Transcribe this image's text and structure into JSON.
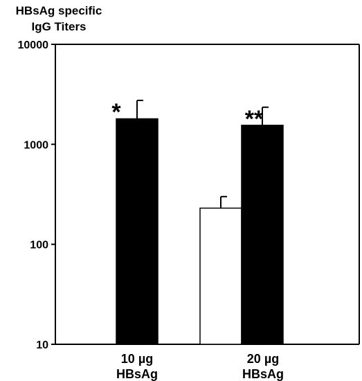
{
  "chart_data": {
    "type": "bar",
    "ylabel_lines": [
      "HBsAg specific",
      "IgG Titers"
    ],
    "yscale": "log",
    "ylim": [
      10,
      10000
    ],
    "yticks": [
      {
        "value": 10,
        "label": "10"
      },
      {
        "value": 100,
        "label": "100"
      },
      {
        "value": 1000,
        "label": "1000"
      },
      {
        "value": 10000,
        "label": "10000"
      }
    ],
    "categories": [
      {
        "lines": [
          "10 µg",
          "HBsAg"
        ]
      },
      {
        "lines": [
          "20 µg",
          "HBsAg"
        ]
      }
    ],
    "series": [
      {
        "fill": "#ffffff",
        "values": [
          null,
          230
        ],
        "errors": [
          null,
          300
        ]
      },
      {
        "fill": "#000000",
        "values": [
          1800,
          1550
        ],
        "errors": [
          2750,
          2350
        ]
      }
    ],
    "annotations": [
      "*",
      "**"
    ],
    "grid": false,
    "legend": "none"
  }
}
